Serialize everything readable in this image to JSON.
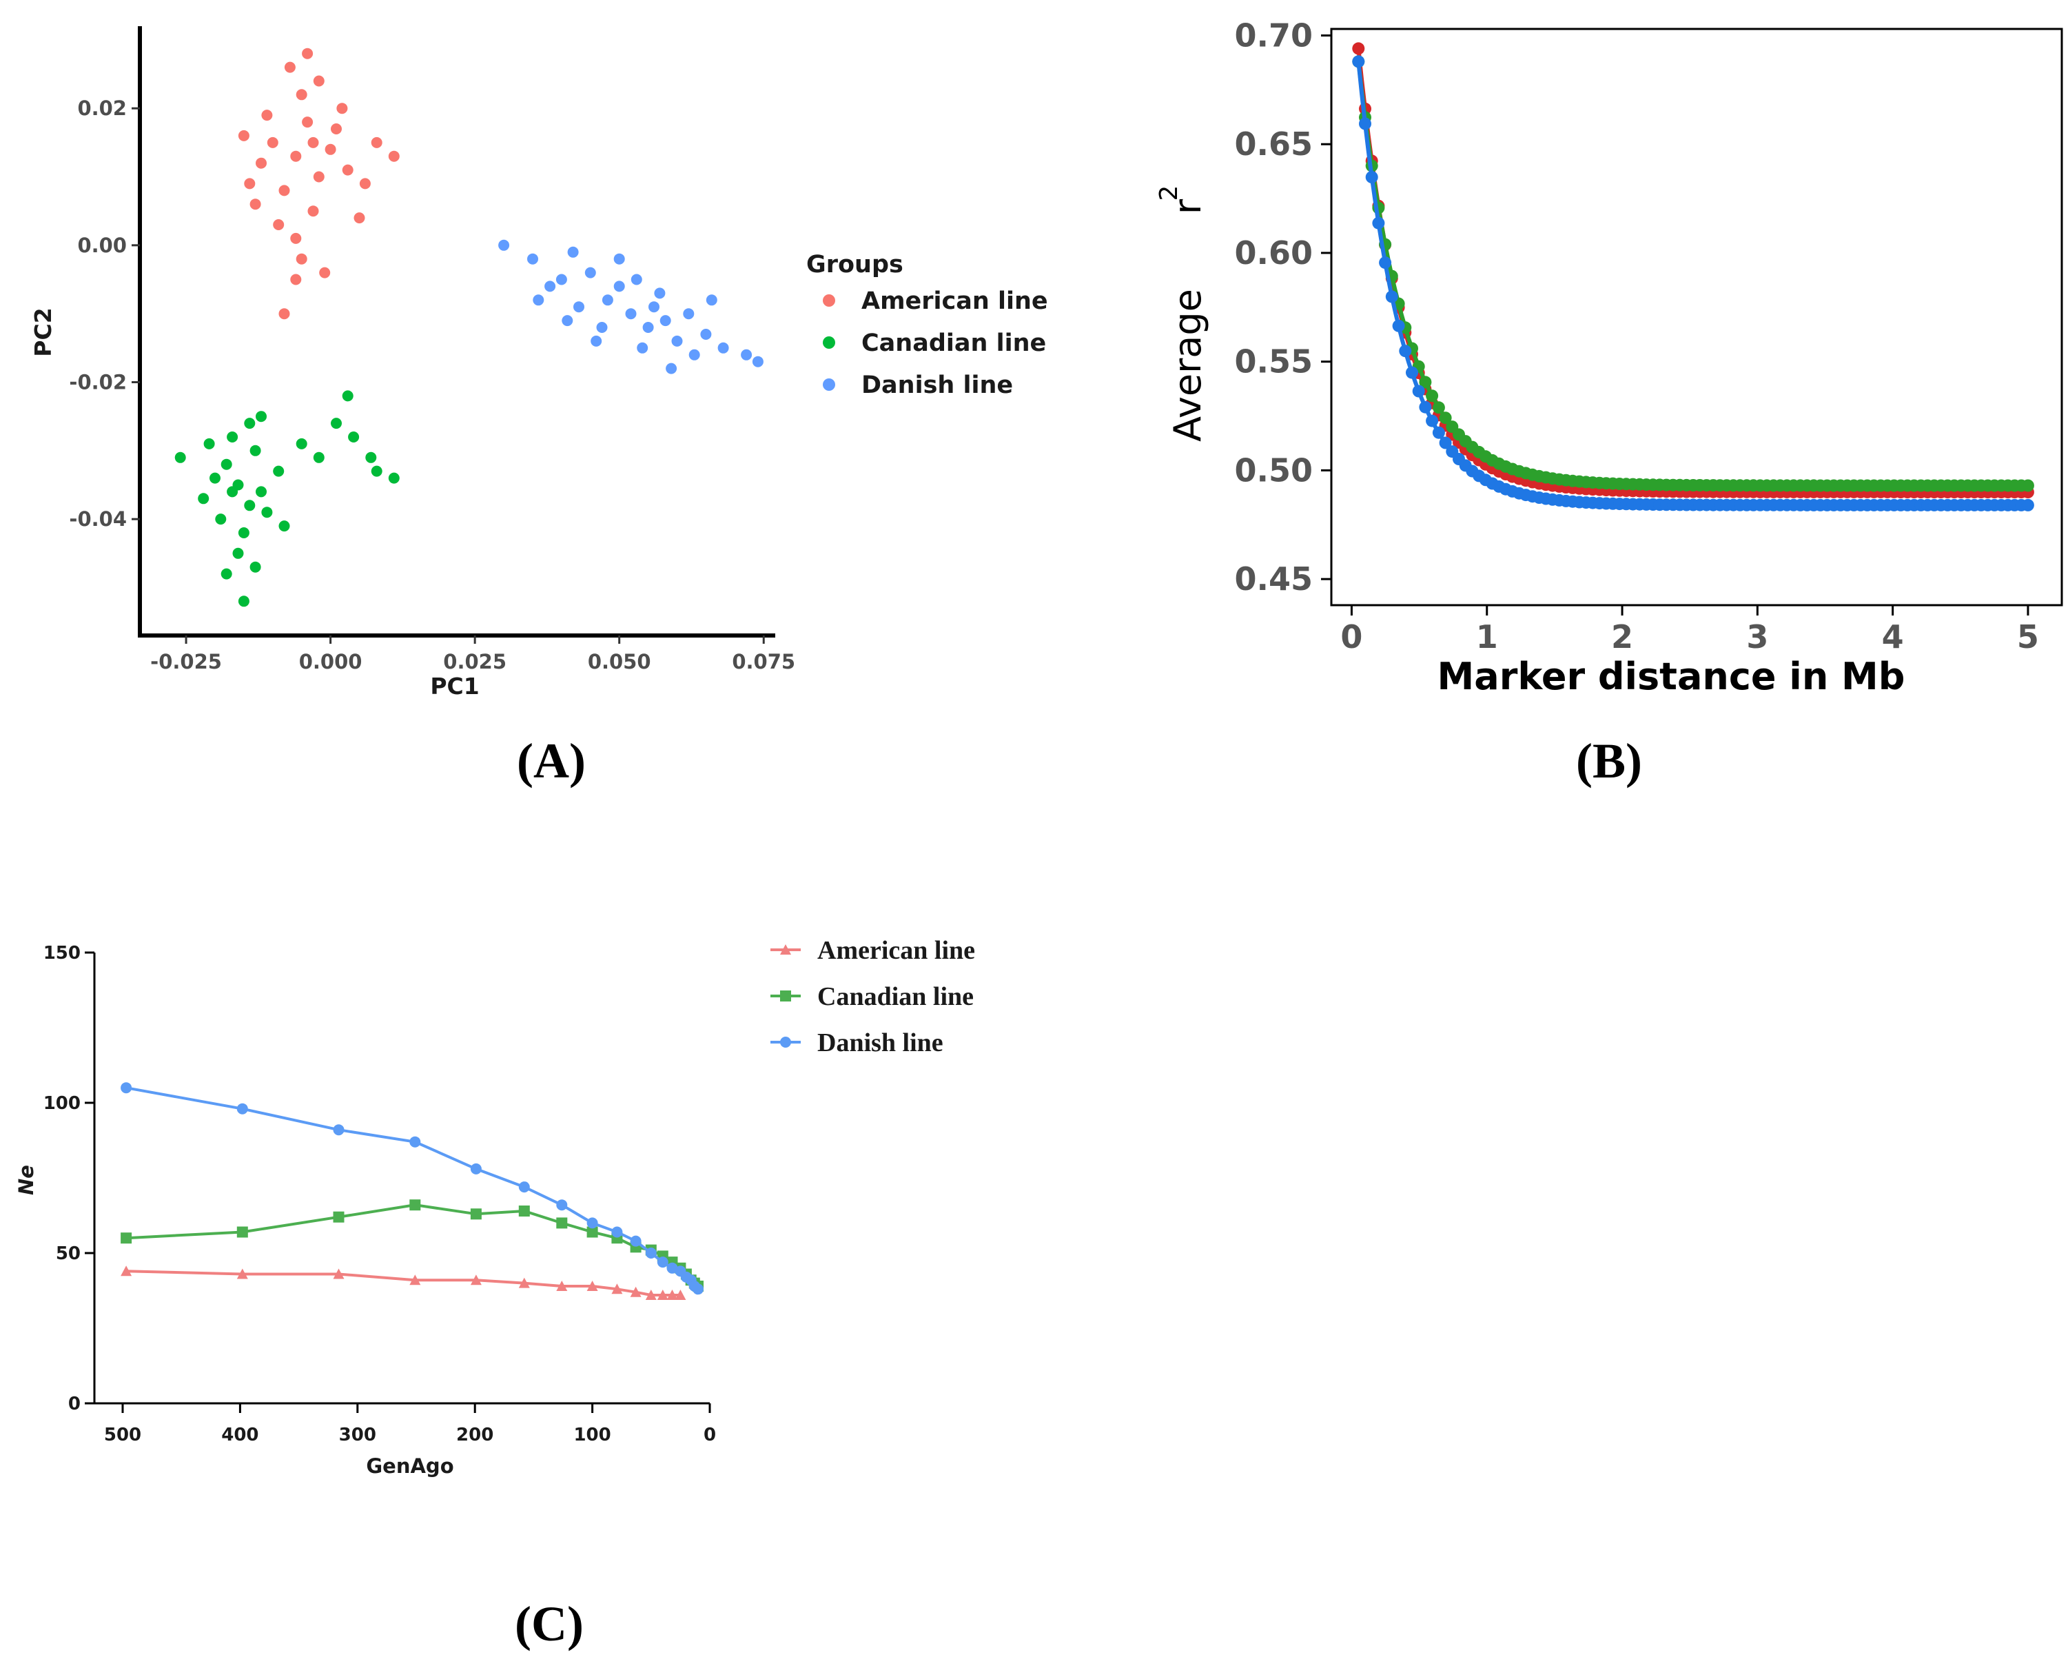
{
  "panel_labels": [
    "(A)",
    "(B)",
    "(C)"
  ],
  "chart_data": [
    {
      "type": "scatter",
      "panel": "(A)",
      "title": "",
      "xlabel": "PC1",
      "ylabel": "PC2",
      "xlim": [
        -0.033,
        0.077
      ],
      "ylim": [
        -0.057,
        0.032
      ],
      "xticks": [
        -0.025,
        0.0,
        0.025,
        0.05,
        0.075
      ],
      "xtick_labels": [
        "-0.025",
        "0.000",
        "0.025",
        "0.050",
        "0.075"
      ],
      "yticks": [
        0.02,
        0.0,
        -0.02,
        -0.04
      ],
      "ytick_labels": [
        "0.02",
        "0.00",
        "-0.02",
        "-0.04"
      ],
      "legend_title": "Groups",
      "series": [
        {
          "name": "American line",
          "color": "#F8766D",
          "points": [
            [
              -0.006,
              0.013
            ],
            [
              -0.004,
              0.018
            ],
            [
              -0.008,
              0.008
            ],
            [
              -0.002,
              0.01
            ],
            [
              -0.01,
              0.015
            ],
            [
              -0.005,
              0.022
            ],
            [
              0.0,
              0.014
            ],
            [
              -0.012,
              0.012
            ],
            [
              -0.003,
              0.005
            ],
            [
              -0.007,
              0.026
            ],
            [
              0.003,
              0.011
            ],
            [
              -0.009,
              0.003
            ],
            [
              -0.005,
              -0.002
            ],
            [
              -0.006,
              -0.005
            ],
            [
              -0.001,
              -0.004
            ],
            [
              -0.008,
              -0.01
            ],
            [
              -0.013,
              0.006
            ],
            [
              0.002,
              0.02
            ],
            [
              0.008,
              0.015
            ],
            [
              0.011,
              0.013
            ],
            [
              -0.015,
              0.016
            ],
            [
              -0.004,
              0.028
            ],
            [
              0.005,
              0.004
            ],
            [
              -0.011,
              0.019
            ],
            [
              -0.002,
              0.024
            ],
            [
              0.006,
              0.009
            ],
            [
              -0.014,
              0.009
            ],
            [
              0.001,
              0.017
            ],
            [
              -0.006,
              0.001
            ],
            [
              -0.003,
              0.015
            ]
          ]
        },
        {
          "name": "Canadian line",
          "color": "#00BA38",
          "points": [
            [
              -0.016,
              -0.035
            ],
            [
              -0.014,
              -0.038
            ],
            [
              -0.018,
              -0.032
            ],
            [
              -0.015,
              -0.042
            ],
            [
              -0.012,
              -0.036
            ],
            [
              -0.017,
              -0.028
            ],
            [
              -0.019,
              -0.04
            ],
            [
              -0.013,
              -0.03
            ],
            [
              -0.016,
              -0.045
            ],
            [
              -0.011,
              -0.039
            ],
            [
              -0.02,
              -0.034
            ],
            [
              -0.014,
              -0.026
            ],
            [
              -0.015,
              -0.052
            ],
            [
              -0.018,
              -0.048
            ],
            [
              -0.022,
              -0.037
            ],
            [
              -0.026,
              -0.031
            ],
            [
              -0.021,
              -0.029
            ],
            [
              -0.009,
              -0.033
            ],
            [
              -0.005,
              -0.029
            ],
            [
              -0.002,
              -0.031
            ],
            [
              0.001,
              -0.026
            ],
            [
              0.004,
              -0.028
            ],
            [
              0.007,
              -0.031
            ],
            [
              0.003,
              -0.022
            ],
            [
              0.008,
              -0.033
            ],
            [
              0.011,
              -0.034
            ],
            [
              -0.008,
              -0.041
            ],
            [
              -0.013,
              -0.047
            ],
            [
              -0.017,
              -0.036
            ],
            [
              -0.012,
              -0.025
            ]
          ]
        },
        {
          "name": "Danish line",
          "color": "#619CFF",
          "points": [
            [
              0.03,
              0.0
            ],
            [
              0.035,
              -0.002
            ],
            [
              0.04,
              -0.005
            ],
            [
              0.045,
              -0.004
            ],
            [
              0.048,
              -0.008
            ],
            [
              0.05,
              -0.006
            ],
            [
              0.052,
              -0.01
            ],
            [
              0.055,
              -0.012
            ],
            [
              0.058,
              -0.011
            ],
            [
              0.06,
              -0.014
            ],
            [
              0.047,
              -0.012
            ],
            [
              0.043,
              -0.009
            ],
            [
              0.038,
              -0.006
            ],
            [
              0.042,
              -0.001
            ],
            [
              0.05,
              -0.002
            ],
            [
              0.053,
              -0.005
            ],
            [
              0.057,
              -0.007
            ],
            [
              0.062,
              -0.01
            ],
            [
              0.065,
              -0.013
            ],
            [
              0.068,
              -0.015
            ],
            [
              0.072,
              -0.016
            ],
            [
              0.074,
              -0.017
            ],
            [
              0.066,
              -0.008
            ],
            [
              0.063,
              -0.016
            ],
            [
              0.059,
              -0.018
            ],
            [
              0.054,
              -0.015
            ],
            [
              0.046,
              -0.014
            ],
            [
              0.041,
              -0.011
            ],
            [
              0.036,
              -0.008
            ],
            [
              0.056,
              -0.009
            ]
          ]
        }
      ]
    },
    {
      "type": "line",
      "panel": "(B)",
      "title": "",
      "xlabel": "Marker distance in Mb",
      "ylabel": "Average",
      "ylabel_super": "r",
      "ylabel_exp": "2",
      "xlim": [
        -0.15,
        5.25
      ],
      "ylim": [
        0.438,
        0.703
      ],
      "xticks": [
        0,
        1,
        2,
        3,
        4,
        5
      ],
      "xtick_labels": [
        "0",
        "1",
        "2",
        "3",
        "4",
        "5"
      ],
      "yticks": [
        0.45,
        0.5,
        0.55,
        0.6,
        0.65,
        0.7
      ],
      "ytick_labels": [
        "0.45",
        "0.50",
        "0.55",
        "0.60",
        "0.65",
        "0.70"
      ],
      "series": [
        {
          "name": "red",
          "color": "#D62728",
          "plateau": 0.49,
          "start": 0.694,
          "decay": 2.95
        },
        {
          "name": "green",
          "color": "#2CA02C",
          "plateau": 0.493,
          "start": 0.688,
          "decay": 2.85
        },
        {
          "name": "blue",
          "color": "#1F77E4",
          "plateau": 0.484,
          "start": 0.688,
          "decay": 3.05
        }
      ]
    },
    {
      "type": "line",
      "panel": "(C)",
      "title": "",
      "xlabel": "GenAgo",
      "ylabel": "Ne",
      "xlim": [
        500,
        0
      ],
      "ylim": [
        0,
        150
      ],
      "xticks": [
        500,
        400,
        300,
        200,
        100,
        0
      ],
      "xtick_labels": [
        "500",
        "400",
        "300",
        "200",
        "100",
        "0"
      ],
      "yticks": [
        0,
        50,
        100,
        150
      ],
      "ytick_labels": [
        "0",
        "50",
        "100",
        "150"
      ],
      "series": [
        {
          "name": "American line",
          "color": "#F08080",
          "marker": "triangle",
          "x": [
            497,
            398,
            316,
            251,
            199,
            158,
            126,
            100,
            79,
            63,
            50,
            40,
            32,
            25
          ],
          "y": [
            44,
            43,
            43,
            41,
            41,
            40,
            39,
            39,
            38,
            37,
            36,
            36,
            36,
            36
          ]
        },
        {
          "name": "Canadian line",
          "color": "#4CAF50",
          "marker": "square",
          "x": [
            497,
            398,
            316,
            251,
            199,
            158,
            126,
            100,
            79,
            63,
            50,
            40,
            32,
            25,
            20,
            16,
            13,
            10
          ],
          "y": [
            55,
            57,
            62,
            66,
            63,
            64,
            60,
            57,
            55,
            52,
            51,
            49,
            47,
            45,
            43,
            41,
            40,
            39
          ]
        },
        {
          "name": "Danish line",
          "color": "#5B9BF5",
          "marker": "circle",
          "x": [
            497,
            398,
            316,
            251,
            199,
            158,
            126,
            100,
            79,
            63,
            50,
            40,
            32,
            25,
            20,
            16,
            13,
            10
          ],
          "y": [
            105,
            98,
            91,
            87,
            78,
            72,
            66,
            60,
            57,
            54,
            50,
            47,
            45,
            44,
            42,
            41,
            39,
            38
          ]
        }
      ]
    }
  ]
}
